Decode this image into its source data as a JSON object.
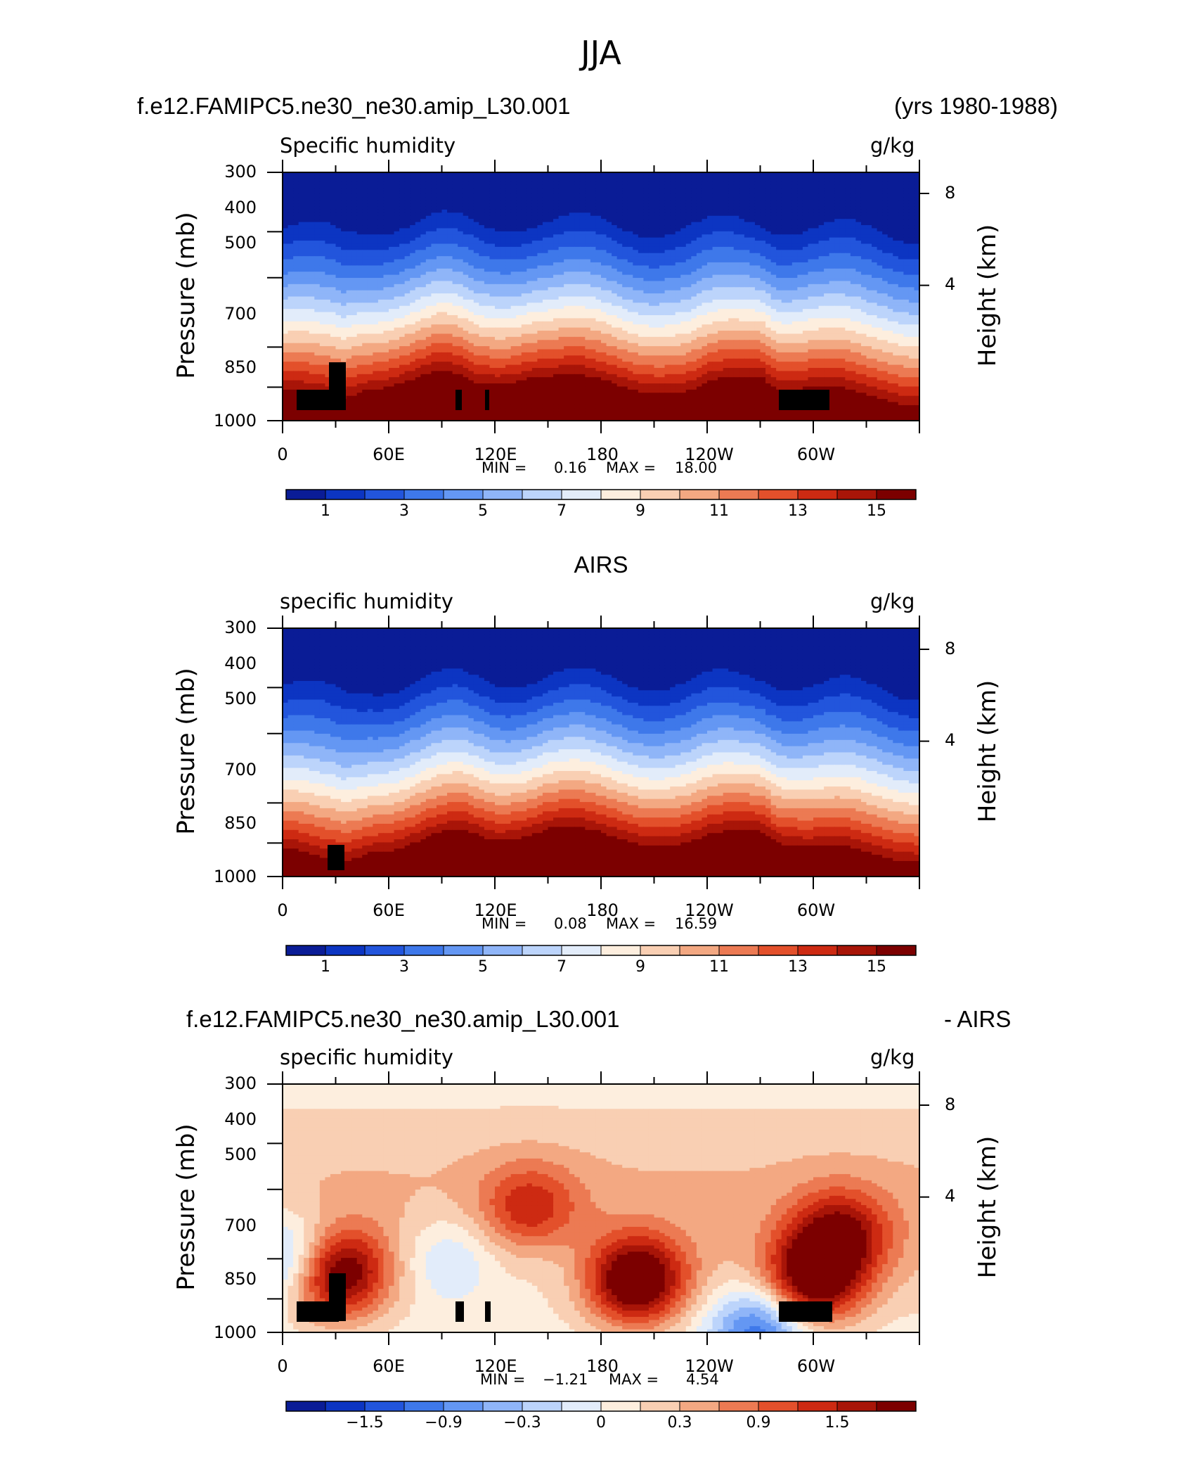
{
  "figure": {
    "season_title": "JJA",
    "case_name": "f.e12.FAMIPC5.ne30_ne30.amip_L30.001",
    "years": "(yrs 1980-1988)",
    "obs_title": "AIRS",
    "diff_case": "f.e12.FAMIPC5.ne30_ne30.amip_L30.001",
    "diff_obs": "- AIRS"
  },
  "chart_data": [
    {
      "type": "heatmap",
      "title": "Specific humidity",
      "units": "g/kg",
      "ylabel": "Pressure (mb)",
      "ylabel_right": "Height (km)",
      "x_ticks": [
        "0",
        "60E",
        "120E",
        "180",
        "120W",
        "60W"
      ],
      "y_ticks": [
        "300",
        "400",
        "500",
        "700",
        "850",
        "1000"
      ],
      "y_ticks_right": [
        "8",
        "4"
      ],
      "ylim": [
        1000,
        300
      ],
      "stats": {
        "min_label": "MIN =",
        "min": "0.16",
        "max_label": "MAX =",
        "max": "18.00"
      },
      "colorbar": {
        "ticks": [
          "1",
          "3",
          "5",
          "7",
          "9",
          "11",
          "13",
          "15"
        ]
      },
      "profile": {
        "x_deg": [
          0,
          20,
          35,
          45,
          60,
          90,
          110,
          120,
          140,
          180,
          230,
          270,
          280,
          300,
          330,
          360
        ],
        "index": [
          0.5,
          0.7,
          0.72,
          0.45,
          0.3,
          0.1,
          0.35,
          0.3,
          0.1,
          0.32,
          0.55,
          0.08,
          0.35,
          0.4,
          0.7,
          0.72
        ]
      }
    },
    {
      "type": "heatmap",
      "title": "specific humidity",
      "units": "g/kg",
      "ylabel": "Pressure (mb)",
      "ylabel_right": "Height (km)",
      "x_ticks": [
        "0",
        "60E",
        "120E",
        "180",
        "120W",
        "60W"
      ],
      "y_ticks": [
        "300",
        "400",
        "500",
        "700",
        "850",
        "1000"
      ],
      "y_ticks_right": [
        "8",
        "4"
      ],
      "ylim": [
        1000,
        300
      ],
      "stats": {
        "min_label": "MIN =",
        "min": "0.08",
        "max_label": "MAX =",
        "max": "16.59"
      },
      "colorbar": {
        "ticks": [
          "1",
          "3",
          "5",
          "7",
          "9",
          "11",
          "13",
          "15"
        ]
      },
      "profile": {
        "x_deg": [
          0,
          20,
          35,
          50,
          70,
          100,
          120,
          150,
          180,
          230,
          270,
          280,
          300,
          330,
          360
        ],
        "index": [
          0.55,
          0.85,
          0.88,
          0.55,
          0.45,
          0.2,
          0.3,
          0.05,
          0.25,
          0.45,
          0.05,
          0.3,
          0.5,
          0.72,
          0.75
        ]
      }
    },
    {
      "type": "heatmap",
      "title": "specific humidity",
      "units": "g/kg",
      "ylabel": "Pressure (mb)",
      "ylabel_right": "Height (km)",
      "x_ticks": [
        "0",
        "60E",
        "120E",
        "180",
        "120W",
        "60W"
      ],
      "y_ticks": [
        "300",
        "400",
        "500",
        "700",
        "850",
        "1000"
      ],
      "y_ticks_right": [
        "8",
        "4"
      ],
      "ylim": [
        1000,
        300
      ],
      "stats": {
        "min_label": "MIN =",
        "min": "−1.21",
        "max_label": "MAX =",
        "max": "4.54"
      },
      "colorbar": {
        "ticks": [
          "−1.5",
          "−0.9",
          "−0.3",
          "0",
          "0.3",
          "0.9",
          "1.5"
        ]
      },
      "diff_blobs": [
        {
          "lon": 5,
          "p": 700,
          "v": -1.0
        },
        {
          "lon": 95,
          "p": 700,
          "v": -0.2
        },
        {
          "lon": 30,
          "p": 750,
          "v": 3.0
        },
        {
          "lon": 200,
          "p": 780,
          "v": 3.0
        },
        {
          "lon": 300,
          "p": 780,
          "v": 2.8
        },
        {
          "lon": 140,
          "p": 550,
          "v": 1.8
        },
        {
          "lon": 315,
          "p": 620,
          "v": 2.2
        },
        {
          "lon": 150,
          "p": 700,
          "v": 0.3
        },
        {
          "lon": 270,
          "p": 980,
          "v": -1.0
        }
      ]
    }
  ],
  "colors": {
    "positive_palette": [
      "#0a1c96",
      "#0c35c2",
      "#2255dc",
      "#3e78ea",
      "#6497f3",
      "#8fb5f8",
      "#bcd4fb",
      "#e2ecfa",
      "#fdeede",
      "#f9cfb3",
      "#f3a882",
      "#ec7a53",
      "#e3502b",
      "#cd2a12",
      "#a81508",
      "#7c0000"
    ],
    "diff_palette": [
      "#0a1c96",
      "#0c35c2",
      "#2255dc",
      "#3e78ea",
      "#6497f3",
      "#8fb5f8",
      "#bcd4fb",
      "#e2ecfa",
      "#fdeede",
      "#f9cfb3",
      "#f3a882",
      "#ec7a53",
      "#e3502b",
      "#cd2a12",
      "#a81508",
      "#7c0000"
    ]
  }
}
